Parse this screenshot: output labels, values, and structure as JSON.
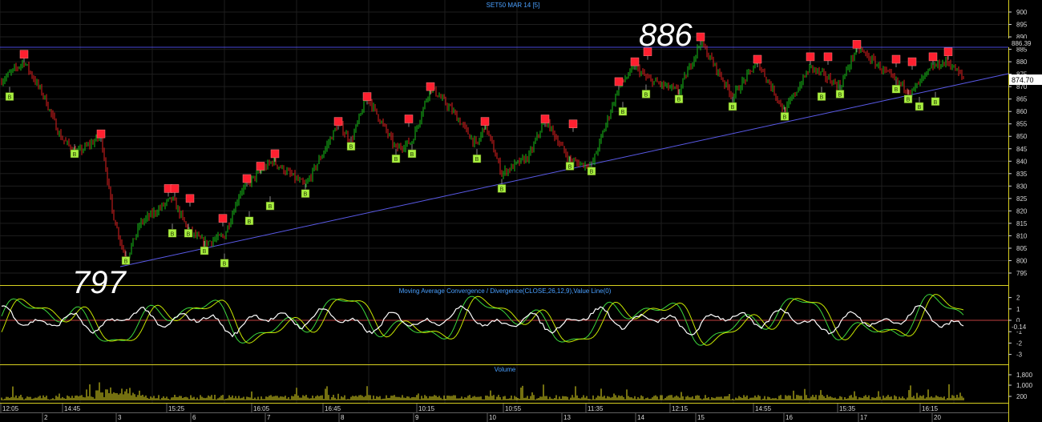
{
  "title": "SET50 MAR 14   [5]",
  "annotations": {
    "high": "886",
    "low": "797"
  },
  "price_axis": {
    "ticks": [
      "900",
      "895",
      "890",
      "885",
      "880",
      "875",
      "870",
      "865",
      "860",
      "855",
      "850",
      "845",
      "840",
      "835",
      "830",
      "825",
      "820",
      "815",
      "810",
      "805",
      "800",
      "795"
    ],
    "ref_label": "886.39",
    "last_label": "874.70"
  },
  "macd": {
    "title": "Moving Average Convergence / Divergence(CLOSE,26,12,9),Value Line(0)",
    "ticks": [
      "2",
      "1",
      "0",
      "-1",
      "-2",
      "-3"
    ],
    "last_label": "-0.14"
  },
  "volume": {
    "title": "Volume",
    "ticks": [
      "1,800",
      "1,000",
      "200"
    ]
  },
  "time_axis": {
    "times": [
      "12:05",
      "14:45",
      "15:25",
      "16:05",
      "16:45",
      "10:15",
      "10:55",
      "11:35",
      "12:15",
      "14:55",
      "15:35",
      "16:15"
    ],
    "days": [
      "2",
      "3",
      "6",
      "7",
      "8",
      "9",
      "10",
      "13",
      "14",
      "15",
      "16",
      "17",
      "20"
    ]
  },
  "signals": {
    "sell": [
      {
        "t": 30,
        "v": 883
      },
      {
        "t": 126,
        "v": 851
      },
      {
        "t": 210,
        "v": 829
      },
      {
        "t": 218,
        "v": 829
      },
      {
        "t": 237,
        "v": 825
      },
      {
        "t": 278,
        "v": 817
      },
      {
        "t": 308,
        "v": 833
      },
      {
        "t": 325,
        "v": 838
      },
      {
        "t": 343,
        "v": 843
      },
      {
        "t": 422,
        "v": 856
      },
      {
        "t": 458,
        "v": 866
      },
      {
        "t": 510,
        "v": 857
      },
      {
        "t": 537,
        "v": 870
      },
      {
        "t": 605,
        "v": 856
      },
      {
        "t": 680,
        "v": 857
      },
      {
        "t": 715,
        "v": 855
      },
      {
        "t": 772,
        "v": 872
      },
      {
        "t": 792,
        "v": 880
      },
      {
        "t": 808,
        "v": 884
      },
      {
        "t": 874,
        "v": 890
      },
      {
        "t": 945,
        "v": 881
      },
      {
        "t": 1011,
        "v": 882
      },
      {
        "t": 1033,
        "v": 882
      },
      {
        "t": 1069,
        "v": 887
      },
      {
        "t": 1118,
        "v": 881
      },
      {
        "t": 1138,
        "v": 880
      },
      {
        "t": 1164,
        "v": 882
      },
      {
        "t": 1183,
        "v": 884
      }
    ],
    "buy": [
      {
        "t": 12,
        "v": 866
      },
      {
        "t": 93,
        "v": 843
      },
      {
        "t": 157,
        "v": 800
      },
      {
        "t": 215,
        "v": 811
      },
      {
        "t": 235,
        "v": 811
      },
      {
        "t": 255,
        "v": 804
      },
      {
        "t": 280,
        "v": 799
      },
      {
        "t": 311,
        "v": 816
      },
      {
        "t": 337,
        "v": 822
      },
      {
        "t": 381,
        "v": 827
      },
      {
        "t": 438,
        "v": 846
      },
      {
        "t": 494,
        "v": 841
      },
      {
        "t": 514,
        "v": 843
      },
      {
        "t": 595,
        "v": 841
      },
      {
        "t": 626,
        "v": 829
      },
      {
        "t": 711,
        "v": 838
      },
      {
        "t": 738,
        "v": 836
      },
      {
        "t": 777,
        "v": 860
      },
      {
        "t": 806,
        "v": 867
      },
      {
        "t": 847,
        "v": 865
      },
      {
        "t": 914,
        "v": 862
      },
      {
        "t": 979,
        "v": 858
      },
      {
        "t": 1025,
        "v": 866
      },
      {
        "t": 1048,
        "v": 867
      },
      {
        "t": 1118,
        "v": 869
      },
      {
        "t": 1133,
        "v": 865
      },
      {
        "t": 1147,
        "v": 862
      },
      {
        "t": 1167,
        "v": 864
      }
    ]
  },
  "colors": {
    "up": "#18c018",
    "down": "#e02020",
    "trendline": "#5a5ae8",
    "frame": "#d8d020",
    "axis_text": "#d8d8d8",
    "title": "#4aa0ff",
    "macd_main": "#3cd83c",
    "macd_signal": "#c8e800",
    "histogram": "#ffffff",
    "zero_line": "#c04040",
    "volume": "#e8e020",
    "sell": "#ff2030",
    "buy": "#a8f040"
  }
}
